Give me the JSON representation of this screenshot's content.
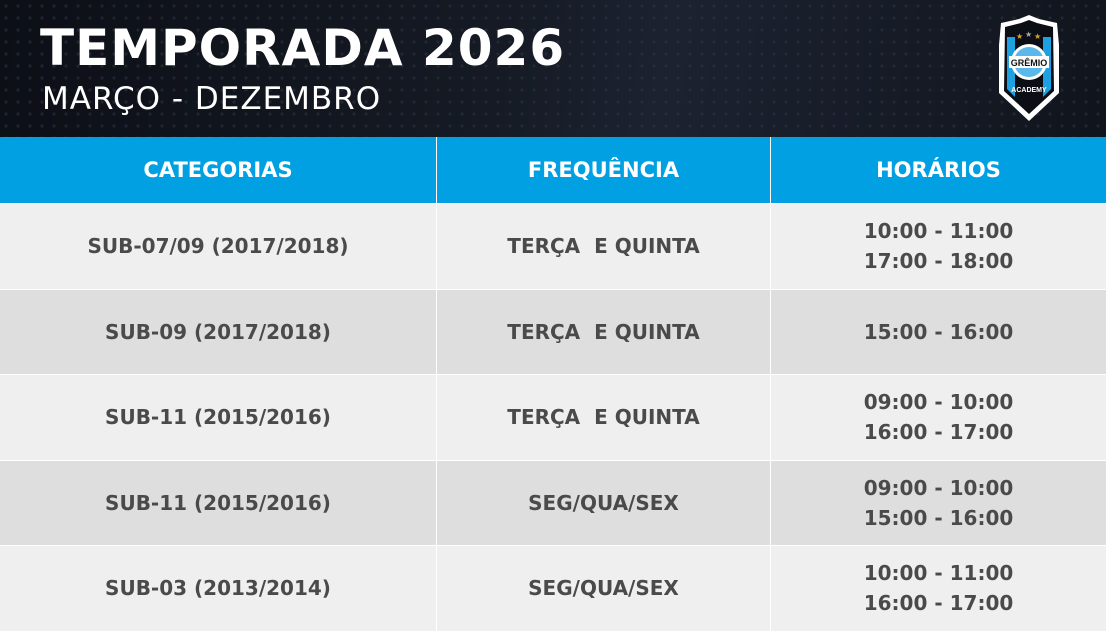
{
  "header": {
    "title": "TEMPORADA 2026",
    "subtitle": "MARÇO - DEZEMBRO",
    "logo_text": "GRÊMIO ACADEMY"
  },
  "colors": {
    "header_bg": "#11151d",
    "accent": "#00a0e2",
    "row_light": "#efefef",
    "row_dark": "#dedede",
    "text": "#4a4a4a"
  },
  "table": {
    "columns": [
      "CATEGORIAS",
      "FREQUÊNCIA",
      "HORÁRIOS"
    ],
    "rows": [
      {
        "categoria": "SUB-07/09 (2017/2018)",
        "frequencia": "TERÇA  E QUINTA",
        "horarios": [
          "10:00 - 11:00",
          "17:00 - 18:00"
        ]
      },
      {
        "categoria": "SUB-09 (2017/2018)",
        "frequencia": "TERÇA  E QUINTA",
        "horarios": [
          "15:00 - 16:00"
        ]
      },
      {
        "categoria": "SUB-11 (2015/2016)",
        "frequencia": "TERÇA  E QUINTA",
        "horarios": [
          "09:00 - 10:00",
          "16:00 - 17:00"
        ]
      },
      {
        "categoria": "SUB-11 (2015/2016)",
        "frequencia": "SEG/QUA/SEX",
        "horarios": [
          "09:00 - 10:00",
          "15:00 - 16:00"
        ]
      },
      {
        "categoria": "SUB-03 (2013/2014)",
        "frequencia": "SEG/QUA/SEX",
        "horarios": [
          "10:00 - 11:00",
          "16:00 - 17:00"
        ]
      }
    ]
  }
}
